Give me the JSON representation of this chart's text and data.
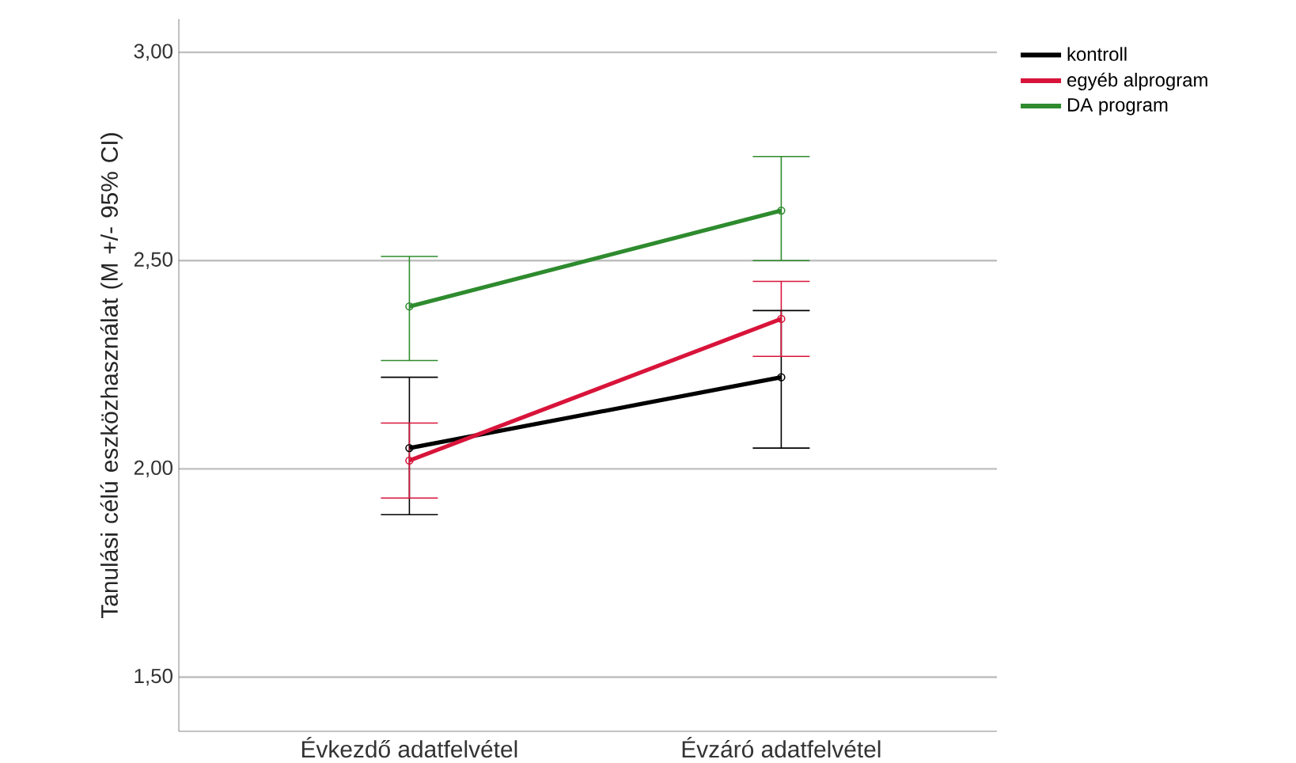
{
  "chart_data": {
    "type": "line",
    "ylabel": "Tanulási célú eszközhasználat (M +/- 95% CI)",
    "categories": [
      "Évkezdő adatfelvétel",
      "Évzáró adatfelvétel"
    ],
    "series": [
      {
        "name": "kontroll",
        "color": "#000000",
        "values": [
          2.05,
          2.22
        ],
        "errors": [
          [
            1.89,
            2.22
          ],
          [
            2.05,
            2.38
          ]
        ]
      },
      {
        "name": "egyéb alprogram",
        "color": "#d8143a",
        "values": [
          2.02,
          2.36
        ],
        "errors": [
          [
            1.93,
            2.11
          ],
          [
            2.27,
            2.45
          ]
        ]
      },
      {
        "name": "DA program",
        "color": "#2e8b2e",
        "values": [
          2.39,
          2.62
        ],
        "errors": [
          [
            2.26,
            2.51
          ],
          [
            2.5,
            2.75
          ]
        ]
      }
    ],
    "ylim": [
      1.37,
      3.08
    ],
    "yticks": [
      {
        "value": 1.5,
        "label": "1,50"
      },
      {
        "value": 2.0,
        "label": "2,00"
      },
      {
        "value": 2.5,
        "label": "2,50"
      },
      {
        "value": 3.0,
        "label": "3,00"
      }
    ],
    "grid": "y",
    "legend": "top right",
    "marker": "circle",
    "line_style": "solid"
  }
}
